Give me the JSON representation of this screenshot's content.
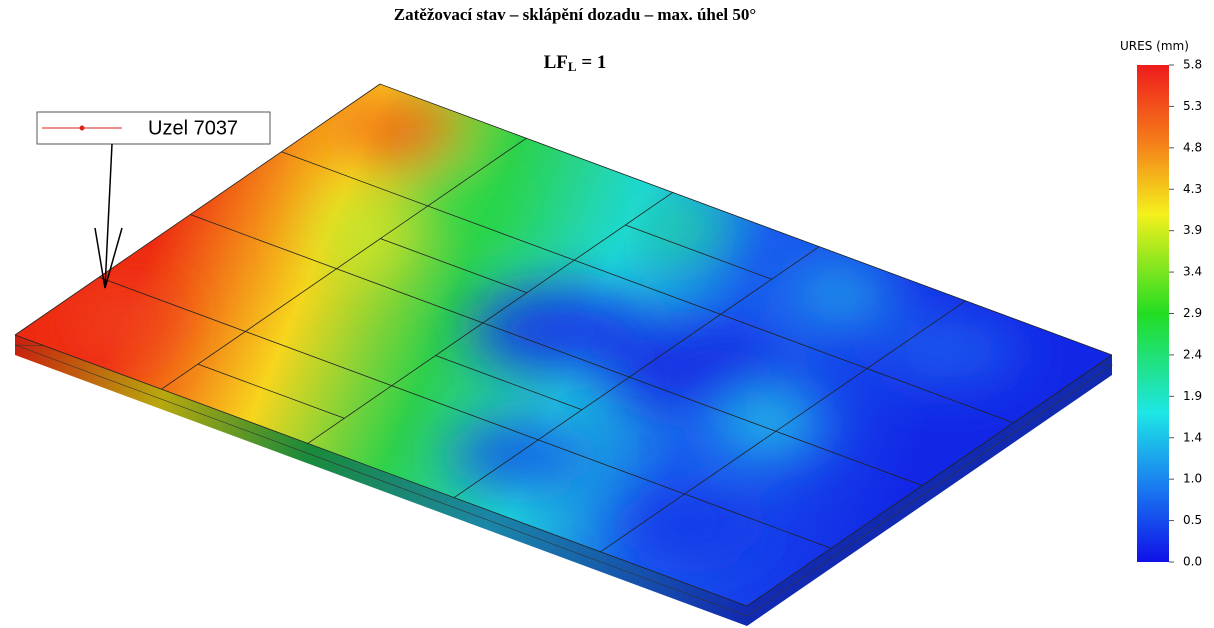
{
  "header": {
    "title": "Zatěžovací  stav – sklápění dozadu – max. úhel 50°",
    "subtitle": {
      "main": "LF",
      "sub": "L",
      "rest": " = 1"
    }
  },
  "callout": {
    "label": "Uzel 7037"
  },
  "colorbar": {
    "title": "URES (mm)",
    "ticks": [
      "5.8",
      "5.3",
      "4.8",
      "4.3",
      "3.9",
      "3.4",
      "2.9",
      "2.4",
      "1.9",
      "1.4",
      "1.0",
      "0.5",
      "0.0"
    ]
  }
}
